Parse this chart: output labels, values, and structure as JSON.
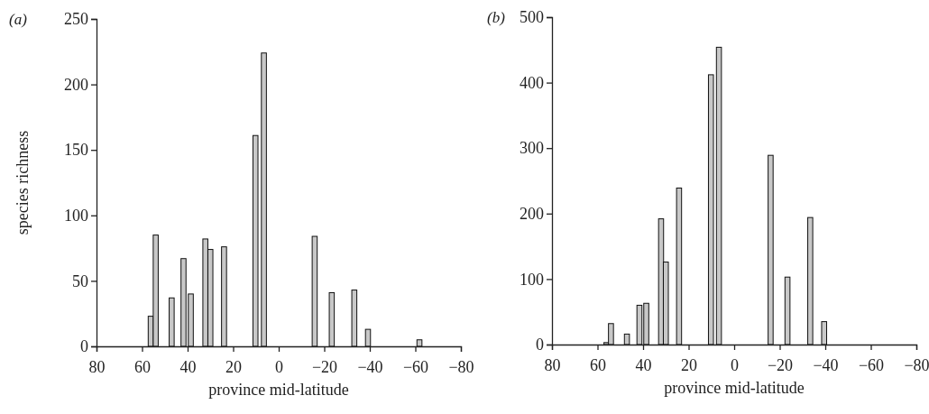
{
  "chart_data": [
    {
      "type": "bar",
      "title": "(a)",
      "xlabel": "province mid-latitude",
      "ylabel": "species richness",
      "x": [
        56.2,
        54,
        47,
        41.8,
        38.6,
        32.2,
        30,
        24,
        10.2,
        6.5,
        -15.8,
        -23.3,
        -33.2,
        -39.2,
        -61.8
      ],
      "values": [
        23,
        85,
        37,
        67,
        40,
        82,
        74,
        76,
        161,
        224,
        84,
        41,
        43,
        13,
        5
      ],
      "color": "#c8c8c8",
      "xlim": [
        80,
        -80
      ],
      "xticks": [
        80,
        60,
        40,
        20,
        0,
        {
          "value": -20,
          "label": "−20"
        },
        {
          "value": -40,
          "label": "−40"
        },
        {
          "value": -60,
          "label": "−60"
        },
        {
          "value": -80,
          "label": "−80"
        }
      ],
      "ylim": [
        0,
        250
      ],
      "yticks": [
        0,
        50,
        100,
        150,
        200,
        250
      ]
    },
    {
      "type": "bar",
      "title": "(b)",
      "xlabel": "province mid-latitude",
      "x": [
        56.1,
        54.1,
        47.1,
        41.6,
        38.6,
        32.1,
        30,
        24.2,
        10.2,
        6.7,
        -16,
        -23.4,
        -33.4,
        -39.5
      ],
      "values": [
        3,
        32,
        16,
        60,
        63,
        192,
        126,
        239,
        412,
        454,
        289,
        103,
        194,
        35
      ],
      "color": "#c8c8c8",
      "xlim": [
        80,
        -80
      ],
      "xticks": [
        80,
        60,
        40,
        20,
        0,
        {
          "value": -20,
          "label": "−20"
        },
        {
          "value": -40,
          "label": "−40"
        },
        {
          "value": -60,
          "label": "−60"
        },
        {
          "value": -80,
          "label": "−80"
        }
      ],
      "ylim": [
        0,
        500
      ],
      "yticks": [
        0,
        100,
        200,
        300,
        400,
        500
      ]
    }
  ]
}
